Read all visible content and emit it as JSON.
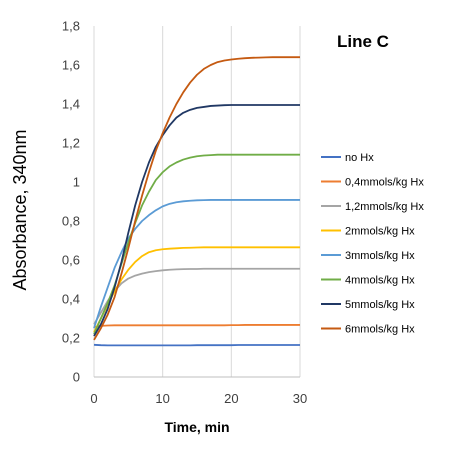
{
  "chart_data": {
    "type": "line",
    "title": "Line C",
    "xlabel": "Time, min",
    "ylabel": "Absorbance, 340nm",
    "xlim": [
      0,
      30
    ],
    "ylim": [
      0,
      1.8
    ],
    "x_ticks": [
      0,
      10,
      20,
      30
    ],
    "x_tick_labels": [
      "0",
      "10",
      "20",
      "30"
    ],
    "y_ticks": [
      0,
      0.2,
      0.4,
      0.6,
      0.8,
      1.0,
      1.2,
      1.4,
      1.6,
      1.8
    ],
    "y_tick_labels": [
      "0",
      "0,2",
      "0,4",
      "0,6",
      "0,8",
      "1",
      "1,2",
      "1,4",
      "1,6",
      "1,8"
    ],
    "grid": "vertical",
    "legend_position": "right",
    "x": [
      0,
      1,
      2,
      3,
      4,
      5,
      6,
      7,
      8,
      9,
      10,
      11,
      12,
      13,
      14,
      15,
      16,
      17,
      18,
      19,
      20,
      21,
      22,
      23,
      24,
      25,
      26,
      27,
      28,
      29,
      30
    ],
    "series": [
      {
        "name": "no Hx",
        "color": "#4472C4",
        "values": [
          0.165,
          0.163,
          0.162,
          0.162,
          0.162,
          0.162,
          0.162,
          0.162,
          0.162,
          0.162,
          0.162,
          0.162,
          0.162,
          0.162,
          0.162,
          0.163,
          0.163,
          0.163,
          0.163,
          0.163,
          0.163,
          0.164,
          0.164,
          0.164,
          0.164,
          0.164,
          0.164,
          0.164,
          0.164,
          0.164,
          0.164
        ]
      },
      {
        "name": "0,4mmols/kg Hx",
        "color": "#ED7D31",
        "values": [
          0.255,
          0.262,
          0.264,
          0.265,
          0.265,
          0.265,
          0.265,
          0.265,
          0.265,
          0.265,
          0.265,
          0.265,
          0.265,
          0.265,
          0.265,
          0.265,
          0.265,
          0.265,
          0.265,
          0.265,
          0.266,
          0.266,
          0.267,
          0.267,
          0.267,
          0.267,
          0.267,
          0.267,
          0.267,
          0.267,
          0.267
        ]
      },
      {
        "name": "1,2mmols/kg Hx",
        "color": "#A5A5A5",
        "values": [
          0.27,
          0.33,
          0.39,
          0.44,
          0.48,
          0.505,
          0.52,
          0.53,
          0.538,
          0.543,
          0.547,
          0.55,
          0.552,
          0.553,
          0.554,
          0.554,
          0.555,
          0.555,
          0.555,
          0.555,
          0.555,
          0.555,
          0.555,
          0.555,
          0.555,
          0.555,
          0.555,
          0.555,
          0.555,
          0.555,
          0.555
        ]
      },
      {
        "name": "2mmols/kg Hx",
        "color": "#FFC000",
        "values": [
          0.23,
          0.3,
          0.37,
          0.44,
          0.5,
          0.55,
          0.59,
          0.62,
          0.64,
          0.65,
          0.655,
          0.658,
          0.66,
          0.662,
          0.663,
          0.664,
          0.665,
          0.665,
          0.665,
          0.665,
          0.665,
          0.665,
          0.665,
          0.665,
          0.665,
          0.665,
          0.665,
          0.665,
          0.665,
          0.665,
          0.665
        ]
      },
      {
        "name": "3mmols/kg Hx",
        "color": "#5B9BD5",
        "values": [
          0.25,
          0.36,
          0.46,
          0.56,
          0.64,
          0.71,
          0.76,
          0.8,
          0.83,
          0.855,
          0.875,
          0.888,
          0.896,
          0.901,
          0.904,
          0.906,
          0.907,
          0.908,
          0.908,
          0.908,
          0.908,
          0.908,
          0.908,
          0.908,
          0.908,
          0.908,
          0.908,
          0.908,
          0.908,
          0.908,
          0.908
        ]
      },
      {
        "name": "4mmols/kg Hx",
        "color": "#70AD47",
        "values": [
          0.22,
          0.3,
          0.38,
          0.47,
          0.58,
          0.69,
          0.79,
          0.88,
          0.95,
          1.01,
          1.05,
          1.08,
          1.1,
          1.115,
          1.125,
          1.132,
          1.136,
          1.138,
          1.14,
          1.14,
          1.14,
          1.14,
          1.14,
          1.14,
          1.14,
          1.14,
          1.14,
          1.14,
          1.14,
          1.14,
          1.14
        ]
      },
      {
        "name": "5mmols/kg Hx",
        "color": "#203864",
        "values": [
          0.21,
          0.27,
          0.35,
          0.46,
          0.59,
          0.74,
          0.88,
          1.0,
          1.1,
          1.18,
          1.24,
          1.29,
          1.33,
          1.355,
          1.37,
          1.38,
          1.385,
          1.39,
          1.392,
          1.394,
          1.395,
          1.395,
          1.395,
          1.395,
          1.395,
          1.395,
          1.395,
          1.395,
          1.395,
          1.395,
          1.395
        ]
      },
      {
        "name": "6mmols/kg Hx",
        "color": "#C55A11",
        "values": [
          0.19,
          0.25,
          0.32,
          0.41,
          0.53,
          0.66,
          0.8,
          0.93,
          1.05,
          1.16,
          1.25,
          1.33,
          1.4,
          1.46,
          1.51,
          1.55,
          1.58,
          1.6,
          1.615,
          1.623,
          1.628,
          1.632,
          1.635,
          1.637,
          1.638,
          1.639,
          1.64,
          1.64,
          1.64,
          1.64,
          1.64
        ]
      }
    ]
  }
}
